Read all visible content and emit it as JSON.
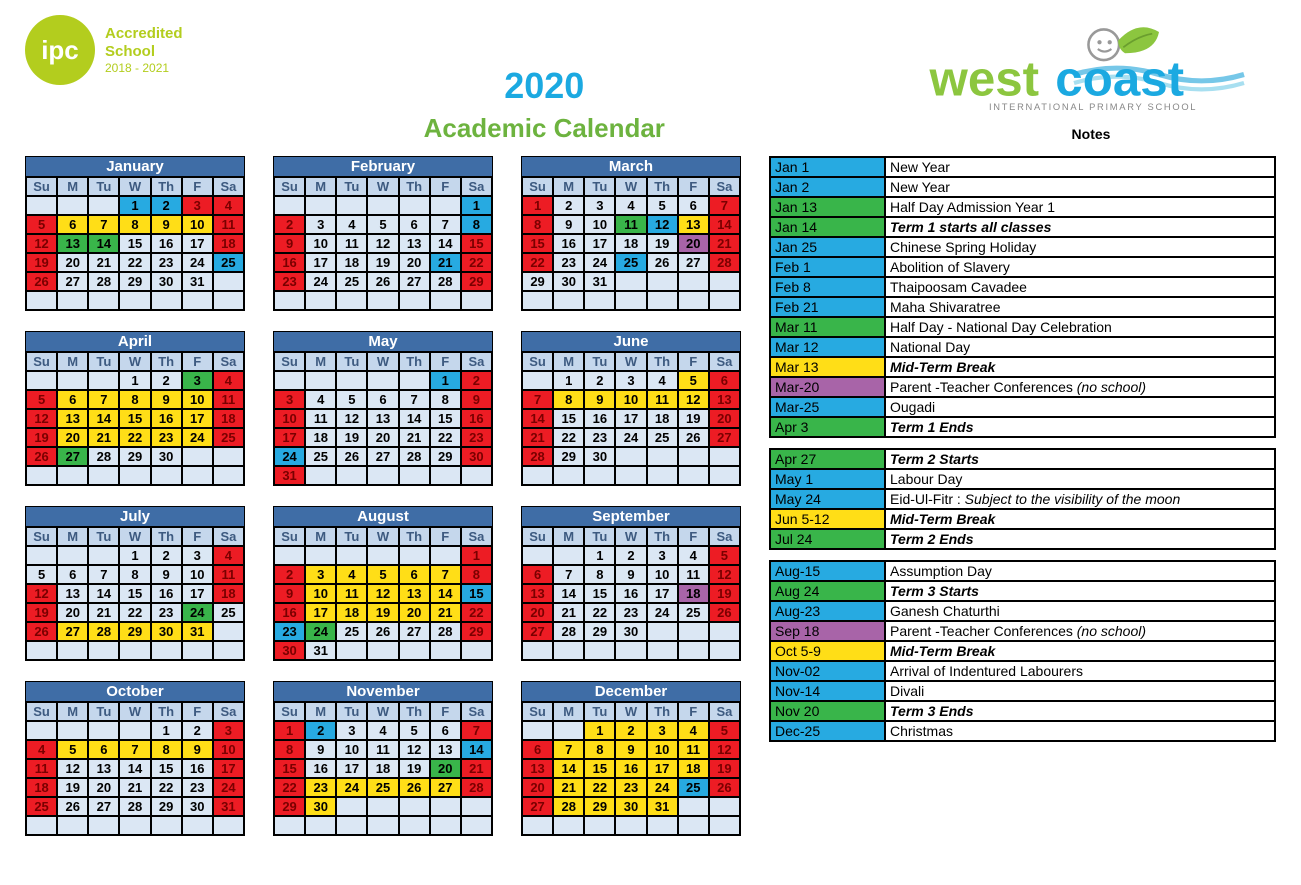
{
  "header": {
    "ipc_label": "ipc",
    "accredited": "Accredited",
    "school": "School",
    "years": "2018 - 2021",
    "year": "2020",
    "title": "Academic Calendar",
    "logo_main": "westcoast",
    "logo_sub": "INTERNATIONAL PRIMARY SCHOOL",
    "notes_label": "Notes"
  },
  "colors": {
    "month_header": "#3f6da6",
    "base": "#dbe7f4",
    "dow": "#c5d7ec",
    "red": "#ed1c24",
    "yellow": "#ffde17",
    "green": "#39b54a",
    "blue": "#27aae1",
    "orange": "#f58220",
    "purple": "#a864a8"
  },
  "day_headers": [
    "Su",
    "M",
    "Tu",
    "W",
    "Th",
    "F",
    "Sa"
  ],
  "months": [
    {
      "name": "January",
      "start": 3,
      "days": 31,
      "rows": 6,
      "styles": {
        "1": "blue",
        "2": "blue",
        "3": "red",
        "4": "red",
        "5": "red",
        "6": "yellow",
        "7": "yellow",
        "8": "yellow",
        "9": "yellow",
        "10": "yellow",
        "11": "red",
        "12": "red",
        "13": "green",
        "14": "green",
        "15": "",
        "16": "",
        "17": "",
        "18": "red",
        "19": "red",
        "20": "",
        "21": "",
        "22": "",
        "23": "",
        "24": "",
        "25": "blue",
        "26": "red",
        "27": "",
        "28": "",
        "29": "",
        "30": "",
        "31": ""
      }
    },
    {
      "name": "February",
      "start": 6,
      "days": 29,
      "rows": 6,
      "styles": {
        "1": "blue",
        "2": "red",
        "3": "",
        "4": "",
        "5": "",
        "6": "",
        "7": "",
        "8": "blue",
        "9": "red",
        "10": "",
        "11": "",
        "12": "",
        "13": "",
        "14": "",
        "15": "red",
        "16": "red",
        "17": "",
        "18": "",
        "19": "",
        "20": "",
        "21": "blue",
        "22": "red",
        "23": "red",
        "24": "",
        "25": "",
        "26": "",
        "27": "",
        "28": "",
        "29": "red"
      }
    },
    {
      "name": "March",
      "start": 0,
      "days": 31,
      "rows": 6,
      "styles": {
        "1": "red",
        "2": "",
        "3": "",
        "4": "",
        "5": "",
        "6": "",
        "7": "red",
        "8": "red",
        "9": "",
        "10": "",
        "11": "green",
        "12": "blue",
        "13": "yellow",
        "14": "red",
        "15": "red",
        "16": "",
        "17": "",
        "18": "",
        "19": "",
        "20": "purple",
        "21": "red",
        "22": "red",
        "23": "",
        "24": "",
        "25": "blue",
        "26": "",
        "27": "",
        "28": "red",
        "29": "",
        "30": "",
        "31": ""
      }
    },
    {
      "name": "April",
      "start": 3,
      "days": 30,
      "rows": 6,
      "styles": {
        "1": "",
        "2": "",
        "3": "green",
        "4": "red",
        "5": "red",
        "6": "yellow",
        "7": "yellow",
        "8": "yellow",
        "9": "yellow",
        "10": "yellow",
        "11": "red",
        "12": "red",
        "13": "yellow",
        "14": "yellow",
        "15": "yellow",
        "16": "yellow",
        "17": "yellow",
        "18": "red",
        "19": "red",
        "20": "yellow",
        "21": "yellow",
        "22": "yellow",
        "23": "yellow",
        "24": "yellow",
        "25": "red",
        "26": "red",
        "27": "green",
        "28": "",
        "29": "",
        "30": ""
      }
    },
    {
      "name": "May",
      "start": 5,
      "days": 31,
      "rows": 6,
      "styles": {
        "1": "blue",
        "2": "red",
        "3": "red",
        "4": "",
        "5": "",
        "6": "",
        "7": "",
        "8": "",
        "9": "red",
        "10": "red",
        "11": "",
        "12": "",
        "13": "",
        "14": "",
        "15": "",
        "16": "red",
        "17": "red",
        "18": "",
        "19": "",
        "20": "",
        "21": "",
        "22": "",
        "23": "red",
        "24": "blue",
        "25": "",
        "26": "",
        "27": "",
        "28": "",
        "29": "",
        "30": "red",
        "31": "red"
      }
    },
    {
      "name": "June",
      "start": 1,
      "days": 30,
      "rows": 6,
      "styles": {
        "1": "",
        "2": "",
        "3": "",
        "4": "",
        "5": "yellow",
        "6": "red",
        "7": "red",
        "8": "yellow",
        "9": "yellow",
        "10": "yellow",
        "11": "yellow",
        "12": "yellow",
        "13": "red",
        "14": "red",
        "15": "",
        "16": "",
        "17": "",
        "18": "",
        "19": "",
        "20": "red",
        "21": "red",
        "22": "",
        "23": "",
        "24": "",
        "25": "",
        "26": "",
        "27": "red",
        "28": "red",
        "29": "",
        "30": ""
      }
    },
    {
      "name": "July",
      "start": 3,
      "days": 31,
      "rows": 6,
      "styles": {
        "1": "",
        "2": "",
        "3": "",
        "4": "red",
        "5": "",
        "6": "",
        "7": "",
        "8": "",
        "9": "",
        "10": "",
        "11": "red",
        "12": "red",
        "13": "",
        "14": "",
        "15": "",
        "16": "",
        "17": "",
        "18": "red",
        "19": "red",
        "20": "",
        "21": "",
        "22": "",
        "23": "",
        "24": "green",
        "25": "",
        "26": "red",
        "27": "yellow",
        "28": "yellow",
        "29": "yellow",
        "30": "yellow",
        "31": "yellow"
      }
    },
    {
      "name": "August",
      "start": 6,
      "days": 31,
      "rows": 6,
      "styles": {
        "1": "red",
        "2": "red",
        "3": "yellow",
        "4": "yellow",
        "5": "yellow",
        "6": "yellow",
        "7": "yellow",
        "8": "red",
        "9": "red",
        "10": "yellow",
        "11": "yellow",
        "12": "yellow",
        "13": "yellow",
        "14": "yellow",
        "15": "blue",
        "16": "red",
        "17": "yellow",
        "18": "yellow",
        "19": "yellow",
        "20": "yellow",
        "21": "yellow",
        "22": "red",
        "23": "blue",
        "24": "green",
        "25": "",
        "26": "",
        "27": "",
        "28": "",
        "29": "red",
        "30": "red",
        "31": ""
      }
    },
    {
      "name": "September",
      "start": 2,
      "days": 30,
      "rows": 6,
      "styles": {
        "1": "",
        "2": "",
        "3": "",
        "4": "",
        "5": "red",
        "6": "red",
        "7": "",
        "8": "",
        "9": "",
        "10": "",
        "11": "",
        "12": "red",
        "13": "red",
        "14": "",
        "15": "",
        "16": "",
        "17": "",
        "18": "purple",
        "19": "red",
        "20": "red",
        "21": "",
        "22": "",
        "23": "",
        "24": "",
        "25": "",
        "26": "red",
        "27": "red",
        "28": "",
        "29": "",
        "30": ""
      }
    },
    {
      "name": "October",
      "start": 4,
      "days": 31,
      "rows": 6,
      "styles": {
        "1": "",
        "2": "",
        "3": "red",
        "4": "red",
        "5": "yellow",
        "6": "yellow",
        "7": "yellow",
        "8": "yellow",
        "9": "yellow",
        "10": "red",
        "11": "red",
        "12": "",
        "13": "",
        "14": "",
        "15": "",
        "16": "",
        "17": "red",
        "18": "red",
        "19": "",
        "20": "",
        "21": "",
        "22": "",
        "23": "",
        "24": "red",
        "25": "red",
        "26": "",
        "27": "",
        "28": "",
        "29": "",
        "30": "",
        "31": "red"
      }
    },
    {
      "name": "November",
      "start": 0,
      "days": 30,
      "rows": 6,
      "styles": {
        "1": "red",
        "2": "blue",
        "3": "",
        "4": "",
        "5": "",
        "6": "",
        "7": "red",
        "8": "red",
        "9": "",
        "10": "",
        "11": "",
        "12": "",
        "13": "",
        "14": "blue",
        "15": "red",
        "16": "",
        "17": "",
        "18": "",
        "19": "",
        "20": "green",
        "21": "red",
        "22": "red",
        "23": "yellow",
        "24": "yellow",
        "25": "yellow",
        "26": "yellow",
        "27": "yellow",
        "28": "red",
        "29": "red",
        "30": "yellow"
      }
    },
    {
      "name": "December",
      "start": 2,
      "days": 31,
      "rows": 6,
      "styles": {
        "1": "yellow",
        "2": "yellow",
        "3": "yellow",
        "4": "yellow",
        "5": "red",
        "6": "red",
        "7": "yellow",
        "8": "yellow",
        "9": "yellow",
        "10": "yellow",
        "11": "yellow",
        "12": "red",
        "13": "red",
        "14": "yellow",
        "15": "yellow",
        "16": "yellow",
        "17": "yellow",
        "18": "yellow",
        "19": "red",
        "20": "red",
        "21": "yellow",
        "22": "yellow",
        "23": "yellow",
        "24": "yellow",
        "25": "blue",
        "26": "red",
        "27": "red",
        "28": "yellow",
        "29": "yellow",
        "30": "yellow",
        "31": "yellow"
      }
    }
  ],
  "notes": [
    [
      {
        "date": "Jan 1",
        "color": "blue",
        "desc": "New Year"
      },
      {
        "date": "Jan 2",
        "color": "blue",
        "desc": "New Year"
      },
      {
        "date": "Jan 13",
        "color": "green",
        "desc": "Half Day Admission Year 1"
      },
      {
        "date": "Jan 14",
        "color": "green",
        "desc": "Term 1 starts all classes",
        "bold": true,
        "italic": true
      },
      {
        "date": "Jan 25",
        "color": "blue",
        "desc": "Chinese Spring Holiday"
      },
      {
        "date": "Feb 1",
        "color": "blue",
        "desc": "Abolition of Slavery"
      },
      {
        "date": "Feb 8",
        "color": "blue",
        "desc": "Thaipoosam Cavadee"
      },
      {
        "date": "Feb 21",
        "color": "blue",
        "desc": "Maha Shivaratree"
      },
      {
        "date": "Mar 11",
        "color": "green",
        "desc": "Half Day - National Day Celebration"
      },
      {
        "date": "Mar 12",
        "color": "blue",
        "desc": "National Day"
      },
      {
        "date": "Mar 13",
        "color": "yellow",
        "desc": "Mid-Term Break",
        "bold": true,
        "italic": true
      },
      {
        "date": "Mar-20",
        "color": "purple",
        "desc": "Parent -Teacher Conferences <em>(no school)</em>"
      },
      {
        "date": "Mar-25",
        "color": "blue",
        "desc": "Ougadi"
      },
      {
        "date": "Apr 3",
        "color": "green",
        "desc": "Term 1 Ends",
        "bold": true,
        "italic": true
      }
    ],
    [
      {
        "date": "Apr 27",
        "color": "green",
        "desc": "Term 2 Starts",
        "bold": true,
        "italic": true
      },
      {
        "date": "May 1",
        "color": "blue",
        "desc": "Labour Day"
      },
      {
        "date": "May 24",
        "color": "blue",
        "desc": "Eid-Ul-Fitr : <em>Subject to the visibility of the moon</em>"
      },
      {
        "date": "Jun 5-12",
        "color": "yellow",
        "desc": "Mid-Term Break",
        "bold": true,
        "italic": true
      },
      {
        "date": "Jul 24",
        "color": "green",
        "desc": "Term 2 Ends",
        "bold": true,
        "italic": true
      }
    ],
    [
      {
        "date": "Aug-15",
        "color": "blue",
        "desc": "Assumption Day"
      },
      {
        "date": "Aug 24",
        "color": "green",
        "desc": "Term 3 Starts",
        "bold": true,
        "italic": true
      },
      {
        "date": "Aug-23",
        "color": "blue",
        "desc": "Ganesh Chaturthi"
      },
      {
        "date": "Sep 18",
        "color": "purple",
        "desc": "Parent -Teacher Conferences <em>(no school)</em>"
      },
      {
        "date": "Oct 5-9",
        "color": "yellow",
        "desc": "Mid-Term Break",
        "bold": true,
        "italic": true
      },
      {
        "date": "Nov-02",
        "color": "blue",
        "desc": "Arrival of Indentured Labourers"
      },
      {
        "date": "Nov-14",
        "color": "blue",
        "desc": "Divali"
      },
      {
        "date": "Nov 20",
        "color": "green",
        "desc": "Term 3 Ends",
        "bold": true,
        "italic": true
      },
      {
        "date": "Dec-25",
        "color": "blue",
        "desc": "Christmas"
      }
    ]
  ]
}
